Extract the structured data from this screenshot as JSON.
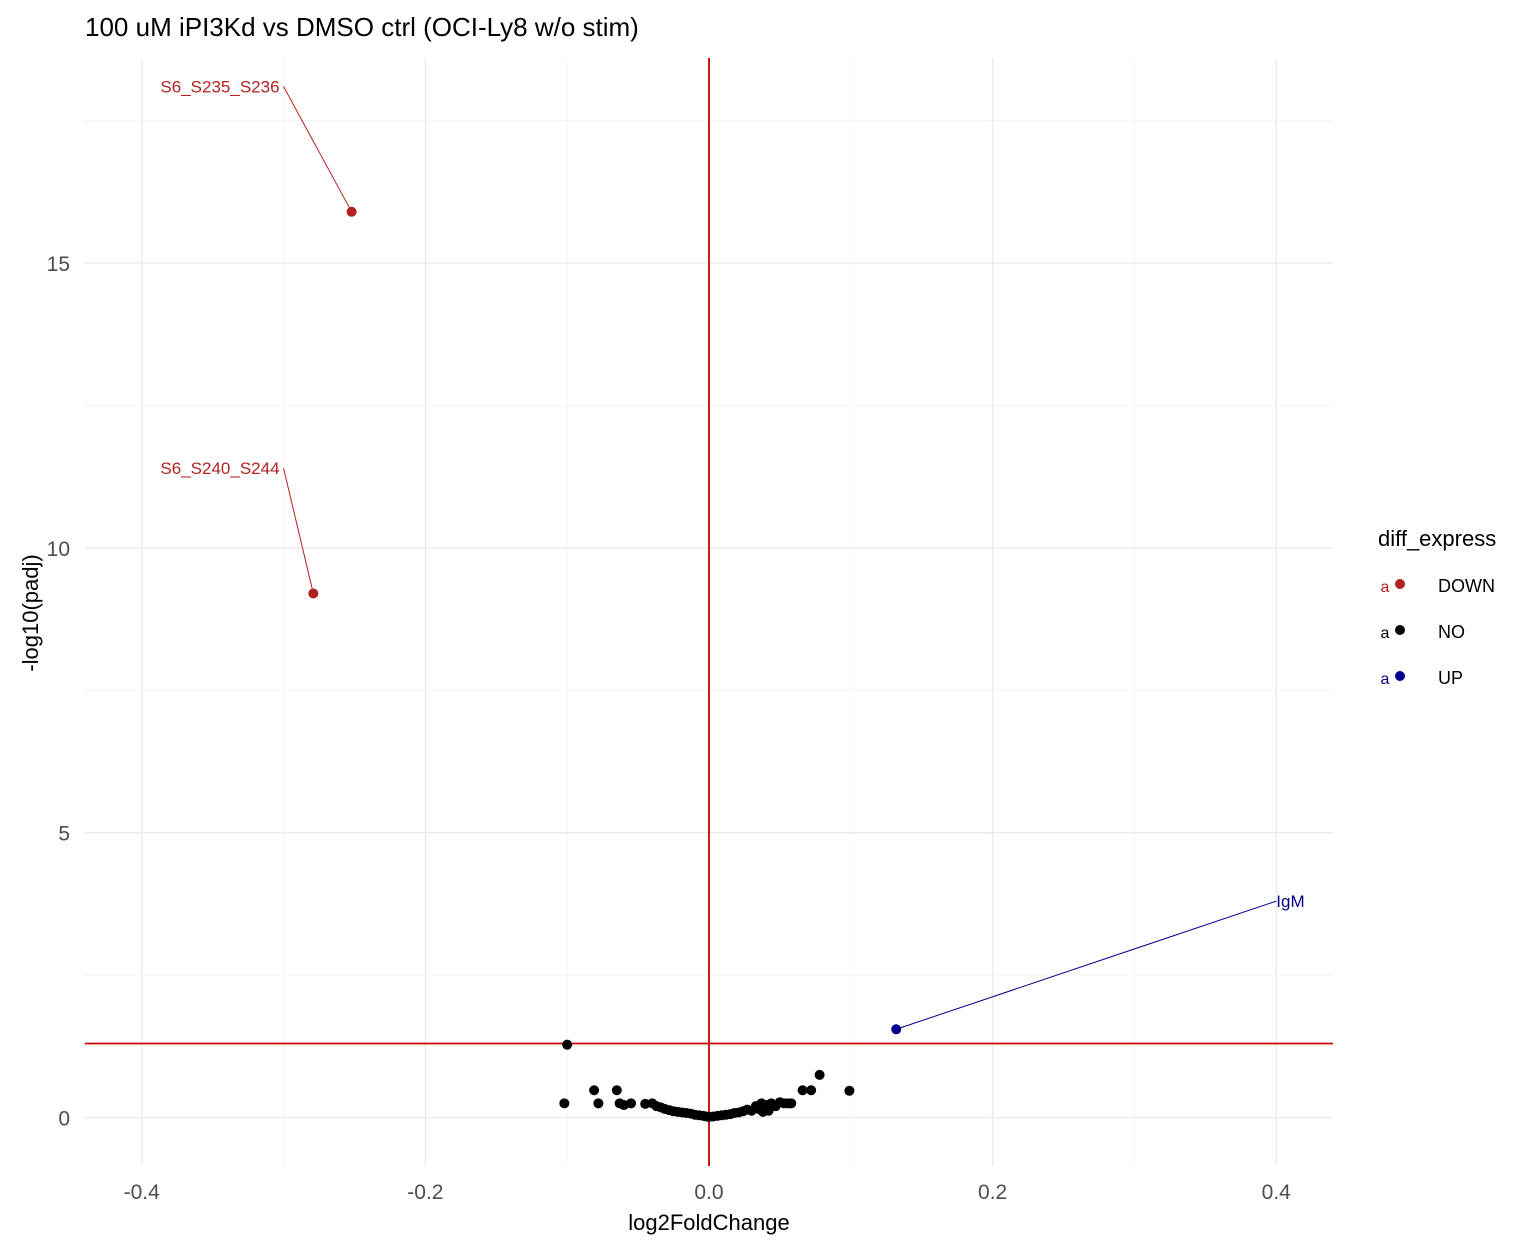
{
  "chart_data": {
    "type": "scatter",
    "title": "100 uM iPI3Kd vs DMSO ctrl (OCI-Ly8 w/o stim)",
    "xlabel": "log2FoldChange",
    "ylabel": "-log10(padj)",
    "xlim": [
      -0.44,
      0.44
    ],
    "ylim": [
      -0.85,
      18.6
    ],
    "x_ticks": [
      -0.4,
      -0.2,
      0.0,
      0.2,
      0.4
    ],
    "x_tick_labels": [
      "-0.4",
      "-0.2",
      "0.0",
      "0.2",
      "0.4"
    ],
    "y_ticks": [
      0,
      5,
      10,
      15
    ],
    "y_tick_labels": [
      "0",
      "5",
      "10",
      "15"
    ],
    "grid": true,
    "threshold_lines": {
      "vertical_x": 0.0,
      "horizontal_y": 1.3,
      "color": "#cc0000"
    },
    "legend": {
      "title": "diff_express",
      "placement": "right",
      "key_glyph": "a",
      "entries": [
        {
          "label": "DOWN",
          "color": "#b22222"
        },
        {
          "label": "NO",
          "color": "#000000"
        },
        {
          "label": "UP",
          "color": "#00008b"
        }
      ]
    },
    "series": [
      {
        "name": "DOWN",
        "color": "#b22222",
        "points": [
          {
            "x": -0.252,
            "y": 15.9,
            "label": "S6_S235_S236",
            "label_x": -0.3,
            "label_y": 18.1
          },
          {
            "x": -0.279,
            "y": 9.2,
            "label": "S6_S240_S244",
            "label_x": -0.3,
            "label_y": 11.4
          }
        ]
      },
      {
        "name": "NO",
        "color": "#000000",
        "points": [
          {
            "x": -0.1,
            "y": 1.28
          },
          {
            "x": -0.102,
            "y": 0.25
          },
          {
            "x": -0.081,
            "y": 0.48
          },
          {
            "x": -0.078,
            "y": 0.25
          },
          {
            "x": -0.065,
            "y": 0.48
          },
          {
            "x": -0.063,
            "y": 0.25
          },
          {
            "x": -0.06,
            "y": 0.22
          },
          {
            "x": -0.055,
            "y": 0.25
          },
          {
            "x": -0.045,
            "y": 0.24
          },
          {
            "x": -0.04,
            "y": 0.25
          },
          {
            "x": -0.037,
            "y": 0.2
          },
          {
            "x": -0.034,
            "y": 0.18
          },
          {
            "x": -0.031,
            "y": 0.15
          },
          {
            "x": -0.028,
            "y": 0.13
          },
          {
            "x": -0.025,
            "y": 0.11
          },
          {
            "x": -0.022,
            "y": 0.1
          },
          {
            "x": -0.019,
            "y": 0.09
          },
          {
            "x": -0.016,
            "y": 0.08
          },
          {
            "x": -0.013,
            "y": 0.07
          },
          {
            "x": -0.01,
            "y": 0.05
          },
          {
            "x": -0.007,
            "y": 0.04
          },
          {
            "x": -0.004,
            "y": 0.03
          },
          {
            "x": -0.002,
            "y": 0.02
          },
          {
            "x": 0.0,
            "y": 0.01
          },
          {
            "x": 0.003,
            "y": 0.02
          },
          {
            "x": 0.006,
            "y": 0.03
          },
          {
            "x": 0.009,
            "y": 0.04
          },
          {
            "x": 0.012,
            "y": 0.05
          },
          {
            "x": 0.015,
            "y": 0.06
          },
          {
            "x": 0.018,
            "y": 0.08
          },
          {
            "x": 0.021,
            "y": 0.09
          },
          {
            "x": 0.024,
            "y": 0.11
          },
          {
            "x": 0.027,
            "y": 0.14
          },
          {
            "x": 0.03,
            "y": 0.12
          },
          {
            "x": 0.033,
            "y": 0.2
          },
          {
            "x": 0.035,
            "y": 0.15
          },
          {
            "x": 0.037,
            "y": 0.25
          },
          {
            "x": 0.038,
            "y": 0.1
          },
          {
            "x": 0.041,
            "y": 0.22
          },
          {
            "x": 0.042,
            "y": 0.12
          },
          {
            "x": 0.044,
            "y": 0.25
          },
          {
            "x": 0.047,
            "y": 0.2
          },
          {
            "x": 0.05,
            "y": 0.27
          },
          {
            "x": 0.053,
            "y": 0.25
          },
          {
            "x": 0.056,
            "y": 0.25
          },
          {
            "x": 0.058,
            "y": 0.25
          },
          {
            "x": 0.066,
            "y": 0.48
          },
          {
            "x": 0.072,
            "y": 0.48
          },
          {
            "x": 0.078,
            "y": 0.75
          },
          {
            "x": 0.099,
            "y": 0.47
          }
        ]
      },
      {
        "name": "UP",
        "color": "#00008b",
        "points": [
          {
            "x": 0.132,
            "y": 1.55,
            "label": "IgM",
            "label_x": 0.4,
            "label_y": 3.8
          }
        ]
      }
    ]
  }
}
